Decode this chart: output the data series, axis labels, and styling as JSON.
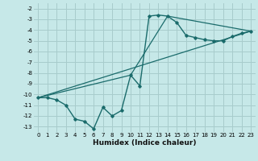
{
  "xlabel": "Humidex (Indice chaleur)",
  "bg_color": "#c6e8e8",
  "grid_color": "#a8cccc",
  "line_color": "#1a6b6b",
  "xlim": [
    -0.5,
    23.5
  ],
  "ylim": [
    -13.5,
    -1.5
  ],
  "yticks": [
    -2,
    -3,
    -4,
    -5,
    -6,
    -7,
    -8,
    -9,
    -10,
    -11,
    -12,
    -13
  ],
  "xticks": [
    0,
    1,
    2,
    3,
    4,
    5,
    6,
    7,
    8,
    9,
    10,
    11,
    12,
    13,
    14,
    15,
    16,
    17,
    18,
    19,
    20,
    21,
    22,
    23
  ],
  "curve1_x": [
    0,
    1,
    2,
    3,
    4,
    5,
    6,
    7,
    8,
    9,
    10,
    11,
    12,
    13,
    14,
    15,
    16,
    17,
    18,
    19,
    20,
    21,
    22,
    23
  ],
  "curve1_y": [
    -10.3,
    -10.3,
    -10.5,
    -11.0,
    -12.3,
    -12.5,
    -13.2,
    -11.2,
    -12.0,
    -11.5,
    -8.2,
    -9.2,
    -2.7,
    -2.6,
    -2.7,
    -3.3,
    -4.5,
    -4.7,
    -4.9,
    -5.0,
    -5.0,
    -4.6,
    -4.3,
    -4.1
  ],
  "curve2_x": [
    0,
    23
  ],
  "curve2_y": [
    -10.3,
    -4.1
  ],
  "curve3_x": [
    0,
    10,
    14,
    23
  ],
  "curve3_y": [
    -10.3,
    -8.2,
    -2.7,
    -4.1
  ]
}
